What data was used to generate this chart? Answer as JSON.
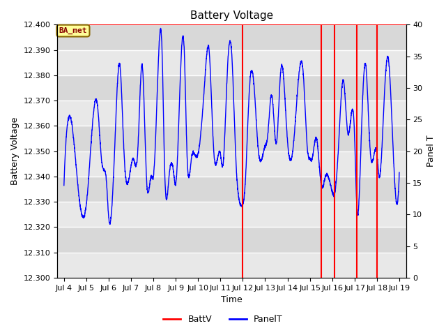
{
  "title": "Battery Voltage",
  "xlabel": "Time",
  "ylabel_left": "Battery Voltage",
  "ylabel_right": "Panel T",
  "ylim_left": [
    12.3,
    12.4
  ],
  "ylim_right": [
    0,
    40
  ],
  "yticks_left": [
    12.3,
    12.31,
    12.32,
    12.33,
    12.34,
    12.35,
    12.36,
    12.37,
    12.38,
    12.39,
    12.4
  ],
  "yticks_right": [
    0,
    5,
    10,
    15,
    20,
    25,
    30,
    35,
    40
  ],
  "xtick_labels": [
    "Jul 4",
    "Jul 5",
    "Jul 6",
    "Jul 7",
    "Jul 8",
    "Jul 9",
    "Jul 10",
    "Jul 11",
    "Jul 12",
    "Jul 13",
    "Jul 14",
    "Jul 15",
    "Jul 16",
    "Jul 17",
    "Jul 18",
    "Jul 19"
  ],
  "xtick_positions": [
    4,
    5,
    6,
    7,
    8,
    9,
    10,
    11,
    12,
    13,
    14,
    15,
    16,
    17,
    18,
    19
  ],
  "xlim": [
    3.7,
    19.3
  ],
  "batt_v_value": 12.4,
  "batt_v_color": "#FF0000",
  "panel_t_color": "#0000FF",
  "bg_color_dark": "#D8D8D8",
  "bg_color_light": "#E8E8E8",
  "grid_color": "#FFFFFF",
  "annotation_text": "BA_met",
  "annotation_bg": "#FFFF99",
  "annotation_border": "#886600",
  "vlines_x": [
    12.0,
    15.5,
    16.1,
    17.1,
    18.0
  ],
  "figsize": [
    6.4,
    4.8
  ],
  "dpi": 100
}
